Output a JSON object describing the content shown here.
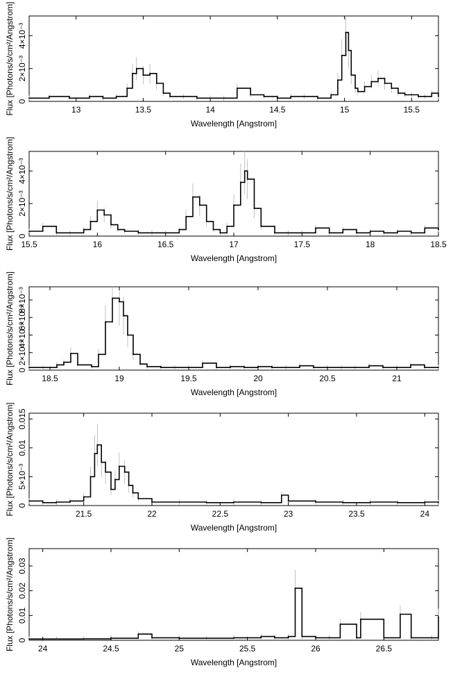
{
  "figure": {
    "ylabel": "Flux [Photons/s/cm²/Angstrom]",
    "xlabel": "Wavelength [Angstrom]"
  },
  "chart_data": [
    {
      "type": "line",
      "xlim": [
        12.65,
        15.7
      ],
      "ylim": [
        0,
        0.0052
      ],
      "xticks": [
        13,
        13.5,
        14,
        14.5,
        15,
        15.5
      ],
      "xtick_labels": [
        "13",
        "13.5",
        "14",
        "14.5",
        "15",
        "15.5"
      ],
      "yticks": [
        0,
        0.002,
        0.004
      ],
      "ytick_labels": [
        "0",
        "2×10⁻³",
        "4×10⁻³"
      ],
      "xlabel": "Wavelength [Angstrom]",
      "ylabel": "Flux [Photons/s/cm²/Angstrom]",
      "x": [
        12.65,
        12.8,
        12.95,
        13.1,
        13.2,
        13.3,
        13.38,
        13.42,
        13.45,
        13.5,
        13.55,
        13.6,
        13.65,
        13.7,
        13.8,
        13.9,
        14.0,
        14.1,
        14.2,
        14.3,
        14.4,
        14.5,
        14.6,
        14.7,
        14.8,
        14.9,
        14.95,
        14.98,
        15.01,
        15.03,
        15.05,
        15.08,
        15.1,
        15.15,
        15.2,
        15.25,
        15.3,
        15.35,
        15.4,
        15.45,
        15.5,
        15.55,
        15.6,
        15.65,
        15.7
      ],
      "y": [
        0.0002,
        0.0003,
        0.0002,
        0.0003,
        0.0002,
        0.0003,
        0.0008,
        0.0017,
        0.002,
        0.0016,
        0.0017,
        0.0011,
        0.0005,
        0.0003,
        0.0003,
        0.0002,
        0.0002,
        0.0002,
        0.0008,
        0.0004,
        0.0003,
        0.0002,
        0.0003,
        0.0003,
        0.0002,
        0.0004,
        0.0013,
        0.0028,
        0.0042,
        0.0031,
        0.0016,
        0.0008,
        0.0006,
        0.0009,
        0.0012,
        0.0014,
        0.0011,
        0.0008,
        0.0005,
        0.0004,
        0.0004,
        0.0003,
        0.0003,
        0.0005,
        0.0003
      ]
    },
    {
      "type": "line",
      "xlim": [
        15.5,
        18.5
      ],
      "ylim": [
        0,
        0.0052
      ],
      "xticks": [
        15.5,
        16,
        16.5,
        17,
        17.5,
        18,
        18.5
      ],
      "xtick_labels": [
        "15.5",
        "16",
        "16.5",
        "17",
        "17.5",
        "18",
        "18.5"
      ],
      "yticks": [
        0,
        0.002,
        0.004
      ],
      "ytick_labels": [
        "0",
        "2×10⁻³",
        "4×10⁻³"
      ],
      "xlabel": "Wavelength [Angstrom]",
      "ylabel": "Flux [Photons/s/cm²/Angstrom]",
      "x": [
        15.5,
        15.6,
        15.7,
        15.8,
        15.9,
        15.95,
        16.0,
        16.05,
        16.1,
        16.15,
        16.2,
        16.3,
        16.4,
        16.5,
        16.6,
        16.65,
        16.7,
        16.75,
        16.8,
        16.85,
        16.9,
        16.95,
        17.0,
        17.05,
        17.08,
        17.1,
        17.15,
        17.2,
        17.3,
        17.4,
        17.5,
        17.6,
        17.7,
        17.8,
        17.9,
        18.0,
        18.1,
        18.2,
        18.3,
        18.4,
        18.5
      ],
      "y": [
        0.0003,
        0.0006,
        0.0002,
        0.0002,
        0.0004,
        0.0009,
        0.0016,
        0.0013,
        0.0007,
        0.0004,
        0.0003,
        0.0002,
        0.0002,
        0.0002,
        0.0004,
        0.0012,
        0.0024,
        0.0019,
        0.0009,
        0.0004,
        0.0002,
        0.0006,
        0.0019,
        0.0033,
        0.004,
        0.0035,
        0.0017,
        0.0006,
        0.0002,
        0.0002,
        0.0002,
        0.0005,
        0.0002,
        0.0004,
        0.0002,
        0.0003,
        0.0002,
        0.0003,
        0.0002,
        0.0005,
        0.0004
      ]
    },
    {
      "type": "line",
      "xlim": [
        18.35,
        21.3
      ],
      "ylim": [
        0,
        0.0095
      ],
      "xticks": [
        18.5,
        19,
        19.5,
        20,
        20.5,
        21
      ],
      "xtick_labels": [
        "18.5",
        "19",
        "19.5",
        "20",
        "20.5",
        "21"
      ],
      "yticks": [
        0,
        0.002,
        0.004,
        0.006,
        0.008
      ],
      "ytick_labels": [
        "0",
        "2×10⁻³",
        "4×10⁻³",
        "6×10⁻³",
        "8×10⁻³"
      ],
      "xlabel": "Wavelength [Angstrom]",
      "ylabel": "Flux [Photons/s/cm²/Angstrom]",
      "x": [
        18.35,
        18.45,
        18.55,
        18.6,
        18.65,
        18.7,
        18.8,
        18.85,
        18.9,
        18.95,
        19.0,
        19.03,
        19.06,
        19.1,
        19.15,
        19.2,
        19.3,
        19.4,
        19.5,
        19.6,
        19.7,
        19.8,
        19.9,
        20.0,
        20.1,
        20.2,
        20.3,
        20.4,
        20.5,
        20.6,
        20.7,
        20.8,
        20.9,
        21.0,
        21.1,
        21.2,
        21.3
      ],
      "y": [
        0.0003,
        0.0003,
        0.0006,
        0.0009,
        0.0019,
        0.0006,
        0.0004,
        0.0018,
        0.0055,
        0.0082,
        0.0078,
        0.0062,
        0.004,
        0.0018,
        0.0007,
        0.0004,
        0.0003,
        0.0003,
        0.0003,
        0.0008,
        0.0003,
        0.0004,
        0.0003,
        0.0004,
        0.0003,
        0.0003,
        0.0005,
        0.0003,
        0.0003,
        0.0003,
        0.0003,
        0.0005,
        0.0003,
        0.0003,
        0.0006,
        0.0003,
        0.0003
      ]
    },
    {
      "type": "line",
      "xlim": [
        21.1,
        24.1
      ],
      "ylim": [
        0,
        0.016
      ],
      "xticks": [
        21.5,
        22,
        22.5,
        23,
        23.5,
        24
      ],
      "xtick_labels": [
        "21.5",
        "22",
        "22.5",
        "23",
        "23.5",
        "24"
      ],
      "yticks": [
        0,
        0.005,
        0.01,
        0.015
      ],
      "ytick_labels": [
        "0",
        "5×10⁻³",
        "0.01",
        "0.015"
      ],
      "xlabel": "Wavelength [Angstrom]",
      "ylabel": "Flux [Photons/s/cm²/Angstrom]",
      "x": [
        21.1,
        21.2,
        21.3,
        21.4,
        21.5,
        21.55,
        21.58,
        21.6,
        21.63,
        21.66,
        21.7,
        21.73,
        21.76,
        21.8,
        21.83,
        21.86,
        21.9,
        22.0,
        22.2,
        22.4,
        22.6,
        22.8,
        22.95,
        23.0,
        23.2,
        23.4,
        23.6,
        23.8,
        24.0,
        24.1
      ],
      "y": [
        0.0008,
        0.0005,
        0.0006,
        0.0008,
        0.0015,
        0.005,
        0.009,
        0.0105,
        0.0075,
        0.0058,
        0.0028,
        0.0045,
        0.0068,
        0.0058,
        0.0035,
        0.0022,
        0.0012,
        0.0006,
        0.0006,
        0.0005,
        0.0006,
        0.0005,
        0.0018,
        0.0008,
        0.0006,
        0.0005,
        0.0006,
        0.0005,
        0.0006,
        0.0005
      ]
    },
    {
      "type": "line",
      "xlim": [
        23.9,
        26.9
      ],
      "ylim": [
        0,
        0.037
      ],
      "xticks": [
        24,
        24.5,
        25,
        25.5,
        26,
        26.5
      ],
      "xtick_labels": [
        "24",
        "24.5",
        "25",
        "25.5",
        "26",
        "26.5"
      ],
      "yticks": [
        0,
        0.01,
        0.02,
        0.03
      ],
      "ytick_labels": [
        "0",
        "0.01",
        "0.02",
        "0.03"
      ],
      "xlabel": "Wavelength [Angstrom]",
      "ylabel": "Flux [Photons/s/cm²/Angstrom]",
      "x": [
        23.9,
        24.1,
        24.3,
        24.5,
        24.7,
        24.8,
        25.0,
        25.2,
        25.4,
        25.6,
        25.7,
        25.8,
        25.85,
        25.9,
        26.0,
        26.1,
        26.18,
        26.3,
        26.33,
        26.5,
        26.62,
        26.7,
        26.85,
        26.9
      ],
      "y": [
        0.0005,
        0.0005,
        0.0006,
        0.0008,
        0.0025,
        0.001,
        0.0008,
        0.0008,
        0.001,
        0.0015,
        0.001,
        0.0015,
        0.021,
        0.0015,
        0.001,
        0.001,
        0.0065,
        0.001,
        0.0085,
        0.001,
        0.0105,
        0.001,
        0.001,
        0.0095
      ]
    }
  ]
}
